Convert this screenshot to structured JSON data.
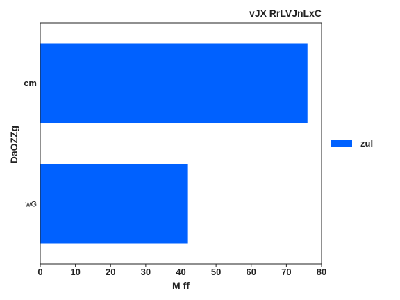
{
  "chart_data": {
    "type": "bar",
    "orientation": "horizontal",
    "title": "vJX RrLVJnLxC",
    "xlabel": "M ff",
    "ylabel": "DaOZZg",
    "categories": [
      "cm",
      "wG"
    ],
    "series": [
      {
        "name": "zul",
        "values": [
          76,
          42
        ],
        "color": "#0061ff"
      }
    ],
    "xlim": [
      0,
      80
    ],
    "xticks": [
      0,
      10,
      20,
      30,
      40,
      50,
      60,
      70,
      80
    ],
    "grid": false,
    "legend_position": "right"
  }
}
